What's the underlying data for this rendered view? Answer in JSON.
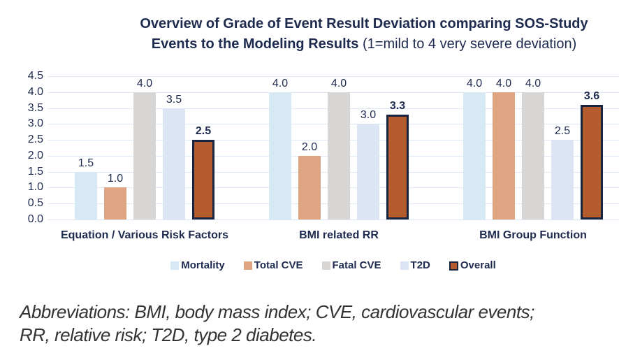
{
  "figure": {
    "title_line1": "Overview of Grade of Event Result Deviation comparing SOS-Study",
    "title_line2_bold": "Events to the Modeling Results",
    "title_line2_normal": " (1=mild to 4 very severe deviation)"
  },
  "chart_data": {
    "type": "bar",
    "title": "Overview of Grade of Event Result Deviation comparing SOS-Study Events to the Modeling Results (1=mild to 4 very severe deviation)",
    "categories": [
      "Equation / Various Risk Factors",
      "BMI related RR",
      "BMI Group Function"
    ],
    "series": [
      {
        "name": "Mortality",
        "color": "#d6e9f5",
        "values": [
          1.5,
          4.0,
          4.0
        ]
      },
      {
        "name": "Total CVE",
        "color": "#dfa583",
        "values": [
          1.0,
          2.0,
          4.0
        ]
      },
      {
        "name": "Fatal CVE",
        "color": "#d8d6d4",
        "values": [
          4.0,
          4.0,
          4.0
        ]
      },
      {
        "name": "T2D",
        "color": "#dce5f4",
        "values": [
          3.5,
          3.0,
          2.5
        ]
      },
      {
        "name": "Overall",
        "color": "#b55c2e",
        "border_color": "#182440",
        "bold_value_labels": true,
        "values": [
          2.5,
          3.3,
          3.6
        ]
      }
    ],
    "y_axis": {
      "min": 0.0,
      "max": 4.5,
      "step": 0.5,
      "tick_labels": [
        "4.5",
        "4.0",
        "3.5",
        "3.0",
        "2.5",
        "2.0",
        "1.5",
        "1.0",
        "0.5",
        "0.0"
      ]
    },
    "value_label_decimals": 1,
    "legend_position": "bottom",
    "grid": true,
    "text_color": "#1e2b4f",
    "gridline_color": "#dce8f5"
  },
  "footnote": {
    "line1": "Abbreviations: BMI, body mass index; CVE, cardiovascular events;",
    "line2": "RR, relative risk; T2D, type 2 diabetes."
  }
}
